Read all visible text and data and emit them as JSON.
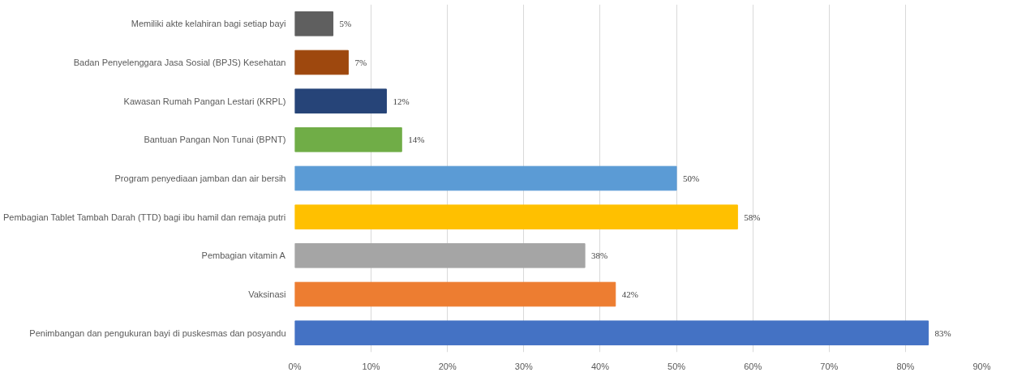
{
  "chart_data": {
    "type": "bar",
    "orientation": "horizontal",
    "categories": [
      "Memiliki akte kelahiran bagi setiap bayi",
      "Badan Penyelenggara Jasa Sosial (BPJS) Kesehatan",
      "Kawasan Rumah Pangan Lestari (KRPL)",
      "Bantuan Pangan Non Tunai (BPNT)",
      "Program penyediaan jamban dan air bersih",
      "Pembagian Tablet Tambah Darah (TTD) bagi ibu hamil dan remaja putri",
      "Pembagian vitamin A",
      "Vaksinasi",
      "Penimbangan dan pengukuran bayi di puskesmas dan posyandu"
    ],
    "values": [
      5,
      7,
      12,
      14,
      50,
      58,
      38,
      42,
      83
    ],
    "colors": [
      "#5f5f5f",
      "#9e480e",
      "#264478",
      "#70ad47",
      "#5b9bd5",
      "#ffc000",
      "#a5a5a5",
      "#ed7d31",
      "#4472c4"
    ],
    "value_labels": [
      "5%",
      "7%",
      "12%",
      "14%",
      "50%",
      "58%",
      "38%",
      "42%",
      "83%"
    ],
    "xlim": [
      0,
      90
    ],
    "xticks": [
      {
        "value": 0,
        "label": "0%"
      },
      {
        "value": 10,
        "label": "10%"
      },
      {
        "value": 20,
        "label": "20%"
      },
      {
        "value": 30,
        "label": "30%"
      },
      {
        "value": 40,
        "label": "40%"
      },
      {
        "value": 50,
        "label": "50%"
      },
      {
        "value": 60,
        "label": "60%"
      },
      {
        "value": 70,
        "label": "70%"
      },
      {
        "value": 80,
        "label": "80%"
      },
      {
        "value": 90,
        "label": "90%"
      }
    ],
    "grid": "x"
  }
}
